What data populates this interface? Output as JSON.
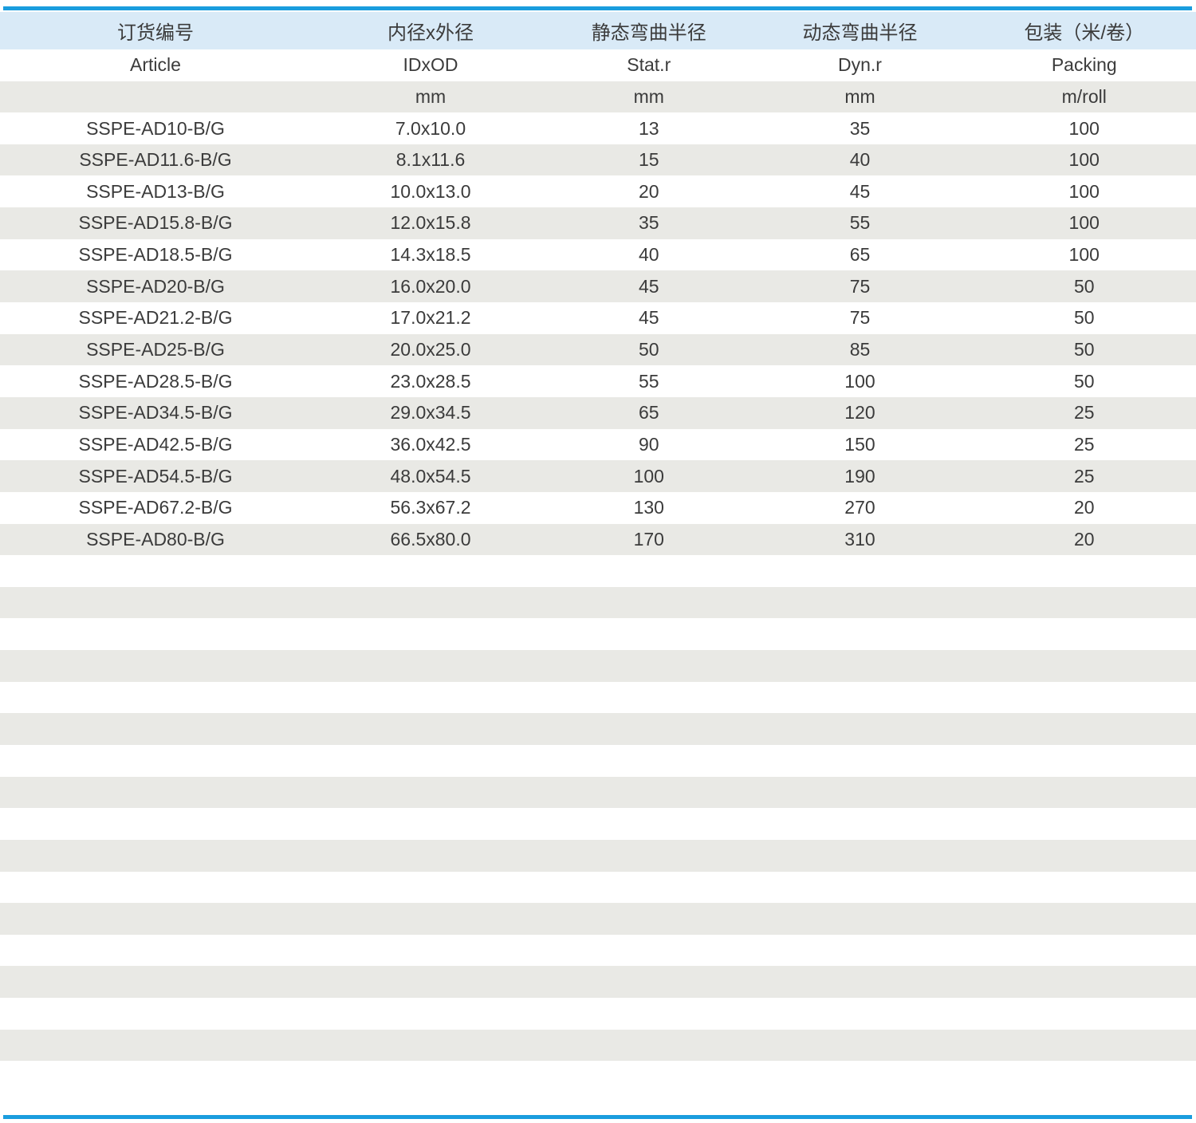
{
  "theme": {
    "accent_blue": "#1a9dde",
    "header_band_blue": "#d9eaf7",
    "row_stripe_gray": "#e9e9e5",
    "text_color": "#3b3b3b",
    "background": "#ffffff"
  },
  "table": {
    "columns": [
      {
        "key": "article",
        "label_zh": "订货编号",
        "label_en": "Article",
        "unit": ""
      },
      {
        "key": "idxod",
        "label_zh": "内径x外径",
        "label_en": "IDxOD",
        "unit": "mm"
      },
      {
        "key": "stat_r",
        "label_zh": "静态弯曲半径",
        "label_en": "Stat.r",
        "unit": "mm"
      },
      {
        "key": "dyn_r",
        "label_zh": "动态弯曲半径",
        "label_en": "Dyn.r",
        "unit": "mm"
      },
      {
        "key": "packing",
        "label_zh": "包装（米/卷）",
        "label_en": "Packing",
        "unit": "m/roll"
      }
    ],
    "rows": [
      [
        "SSPE-AD10-B/G",
        "7.0x10.0",
        "13",
        "35",
        "100"
      ],
      [
        "SSPE-AD11.6-B/G",
        "8.1x11.6",
        "15",
        "40",
        "100"
      ],
      [
        "SSPE-AD13-B/G",
        "10.0x13.0",
        "20",
        "45",
        "100"
      ],
      [
        "SSPE-AD15.8-B/G",
        "12.0x15.8",
        "35",
        "55",
        "100"
      ],
      [
        "SSPE-AD18.5-B/G",
        "14.3x18.5",
        "40",
        "65",
        "100"
      ],
      [
        "SSPE-AD20-B/G",
        "16.0x20.0",
        "45",
        "75",
        "50"
      ],
      [
        "SSPE-AD21.2-B/G",
        "17.0x21.2",
        "45",
        "75",
        "50"
      ],
      [
        "SSPE-AD25-B/G",
        "20.0x25.0",
        "50",
        "85",
        "50"
      ],
      [
        "SSPE-AD28.5-B/G",
        "23.0x28.5",
        "55",
        "100",
        "50"
      ],
      [
        "SSPE-AD34.5-B/G",
        "29.0x34.5",
        "65",
        "120",
        "25"
      ],
      [
        "SSPE-AD42.5-B/G",
        "36.0x42.5",
        "90",
        "150",
        "25"
      ],
      [
        "SSPE-AD54.5-B/G",
        "48.0x54.5",
        "100",
        "190",
        "25"
      ],
      [
        "SSPE-AD67.2-B/G",
        "56.3x67.2",
        "130",
        "270",
        "20"
      ],
      [
        "SSPE-AD80-B/G",
        "66.5x80.0",
        "170",
        "310",
        "20"
      ]
    ],
    "empty_trailing_rows": 16
  }
}
